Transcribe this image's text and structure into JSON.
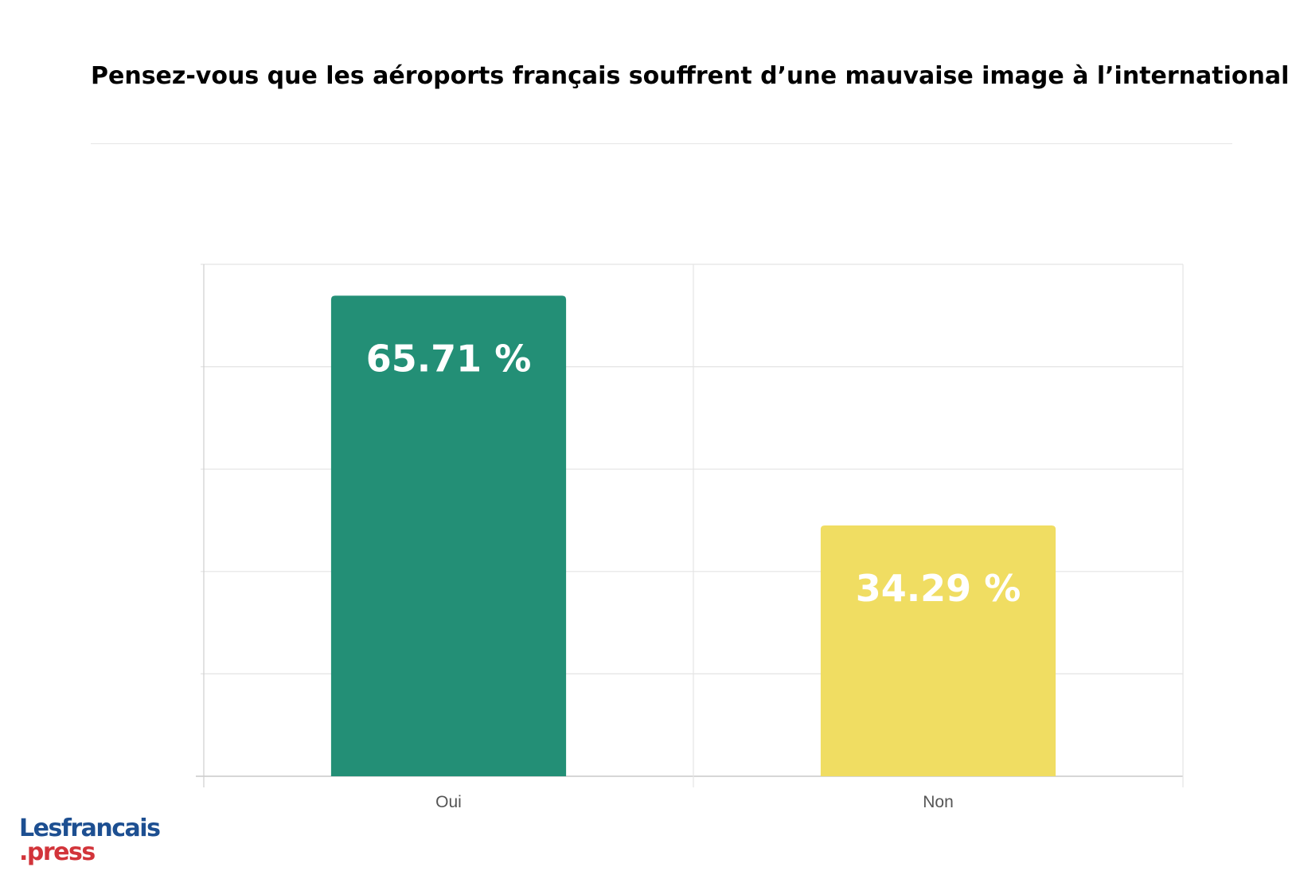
{
  "header": {
    "title": "Pensez-vous que les aéroports français souffrent d’une mauvaise image à l’international ?"
  },
  "logo": {
    "line1": "Lesfrancais",
    "line2": ".press",
    "colors": {
      "line1": "#1d4f91",
      "line2": "#d2343a"
    }
  },
  "chart_data": {
    "type": "bar",
    "title": "Pensez-vous que les aéroports français souffrent d’une mauvaise image à l’international ?",
    "categories": [
      "Oui",
      "Non"
    ],
    "values": [
      65.71,
      34.29
    ],
    "value_labels": [
      "65.71 %",
      "34.29 %"
    ],
    "colors": [
      "#238f76",
      "#f0dd62"
    ],
    "xlabel": "",
    "ylabel": "",
    "ylim": [
      0,
      70
    ],
    "grid": true,
    "legend": "none"
  }
}
